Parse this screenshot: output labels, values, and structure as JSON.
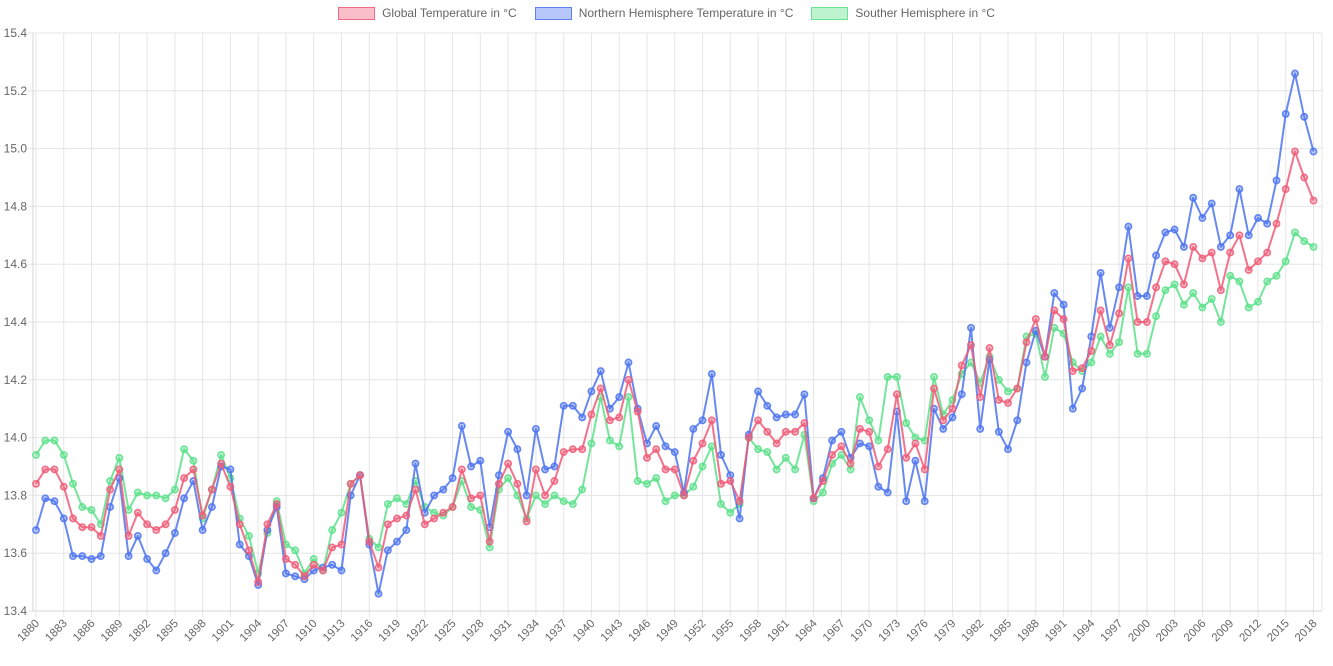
{
  "chart_data": {
    "type": "line",
    "title": "",
    "xlabel": "",
    "ylabel": "",
    "x_start": 1880,
    "x_end": 2018,
    "x_tick_step": 3,
    "x_tick_labels": [
      "1880",
      "1883",
      "1886",
      "1889",
      "1892",
      "1895",
      "1898",
      "1901",
      "1904",
      "1907",
      "1910",
      "1913",
      "1916",
      "1919",
      "1922",
      "1925",
      "1928",
      "1931",
      "1934",
      "1937",
      "1940",
      "1943",
      "1946",
      "1949",
      "1952",
      "1955",
      "1958",
      "1961",
      "1964",
      "1967",
      "1970",
      "1973",
      "1976",
      "1979",
      "1982",
      "1985",
      "1988",
      "1991",
      "1994",
      "1997",
      "2000",
      "2003",
      "2006",
      "2009",
      "2012",
      "2015",
      "2018"
    ],
    "ylim": [
      13.4,
      15.4
    ],
    "y_tick_labels": [
      "13.4",
      "13.6",
      "13.8",
      "14.0",
      "14.2",
      "14.4",
      "14.6",
      "14.8",
      "15.0",
      "15.2",
      "15.4"
    ],
    "grid": true,
    "legend_position": "top",
    "series": [
      {
        "name": "Global Temperature in °C",
        "color": "#F05C78",
        "line_alpha": 0.85,
        "point_fill_alpha": 0.35,
        "values": [
          13.84,
          13.89,
          13.89,
          13.83,
          13.72,
          13.69,
          13.69,
          13.66,
          13.82,
          13.89,
          13.66,
          13.74,
          13.7,
          13.68,
          13.7,
          13.75,
          13.86,
          13.89,
          13.73,
          13.82,
          13.91,
          13.83,
          13.7,
          13.61,
          13.5,
          13.7,
          13.77,
          13.58,
          13.56,
          13.52,
          13.56,
          13.54,
          13.62,
          13.63,
          13.84,
          13.87,
          13.64,
          13.55,
          13.7,
          13.72,
          13.73,
          13.82,
          13.7,
          13.72,
          13.74,
          13.76,
          13.89,
          13.79,
          13.8,
          13.64,
          13.84,
          13.91,
          13.84,
          13.71,
          13.89,
          13.8,
          13.85,
          13.95,
          13.96,
          13.96,
          14.08,
          14.17,
          14.06,
          14.07,
          14.2,
          14.09,
          13.93,
          13.96,
          13.89,
          13.89,
          13.8,
          13.92,
          13.98,
          14.06,
          13.84,
          13.85,
          13.78,
          14.0,
          14.06,
          14.02,
          13.98,
          14.02,
          14.02,
          14.05,
          13.79,
          13.85,
          13.94,
          13.97,
          13.91,
          14.03,
          14.02,
          13.9,
          13.96,
          14.15,
          13.93,
          13.98,
          13.89,
          14.17,
          14.06,
          14.1,
          14.25,
          14.32,
          14.14,
          14.31,
          14.13,
          14.12,
          14.17,
          14.33,
          14.41,
          14.28,
          14.44,
          14.41,
          14.23,
          14.24,
          14.3,
          14.44,
          14.32,
          14.43,
          14.62,
          14.4,
          14.4,
          14.52,
          14.61,
          14.6,
          14.53,
          14.66,
          14.62,
          14.64,
          14.51,
          14.64,
          14.7,
          14.58,
          14.61,
          14.64,
          14.74,
          14.86,
          14.99,
          14.9,
          14.82
        ]
      },
      {
        "name": "Northern Hemisphere Temperature in °C",
        "color": "#4E74F0",
        "line_alpha": 0.85,
        "point_fill_alpha": 0.35,
        "values": [
          13.68,
          13.79,
          13.78,
          13.72,
          13.59,
          13.59,
          13.58,
          13.59,
          13.76,
          13.86,
          13.59,
          13.66,
          13.58,
          13.54,
          13.6,
          13.67,
          13.79,
          13.85,
          13.68,
          13.76,
          13.9,
          13.89,
          13.63,
          13.59,
          13.49,
          13.68,
          13.76,
          13.53,
          13.52,
          13.51,
          13.54,
          13.55,
          13.56,
          13.54,
          13.8,
          13.87,
          13.63,
          13.46,
          13.61,
          13.64,
          13.68,
          13.91,
          13.74,
          13.8,
          13.82,
          13.86,
          14.04,
          13.9,
          13.92,
          13.69,
          13.87,
          14.02,
          13.96,
          13.8,
          14.03,
          13.89,
          13.9,
          14.11,
          14.11,
          14.07,
          14.16,
          14.23,
          14.1,
          14.14,
          14.26,
          14.1,
          13.98,
          14.04,
          13.97,
          13.95,
          13.81,
          14.03,
          14.06,
          14.22,
          13.94,
          13.87,
          13.72,
          14.01,
          14.16,
          14.11,
          14.07,
          14.08,
          14.08,
          14.15,
          13.79,
          13.86,
          13.99,
          14.02,
          13.93,
          13.98,
          13.97,
          13.83,
          13.81,
          14.09,
          13.78,
          13.92,
          13.78,
          14.1,
          14.03,
          14.07,
          14.15,
          14.38,
          14.03,
          14.27,
          14.02,
          13.96,
          14.06,
          14.26,
          14.37,
          14.28,
          14.5,
          14.46,
          14.1,
          14.17,
          14.35,
          14.57,
          14.38,
          14.52,
          14.73,
          14.49,
          14.49,
          14.63,
          14.71,
          14.72,
          14.66,
          14.83,
          14.76,
          14.81,
          14.66,
          14.7,
          14.86,
          14.7,
          14.76,
          14.74,
          14.89,
          15.12,
          15.26,
          15.11,
          14.99
        ]
      },
      {
        "name": "Souther Hemisphere in °C",
        "color": "#5CE08A",
        "line_alpha": 0.85,
        "point_fill_alpha": 0.35,
        "values": [
          13.94,
          13.99,
          13.99,
          13.94,
          13.84,
          13.76,
          13.75,
          13.7,
          13.85,
          13.93,
          13.75,
          13.81,
          13.8,
          13.8,
          13.79,
          13.82,
          13.96,
          13.92,
          13.72,
          13.82,
          13.94,
          13.86,
          13.72,
          13.66,
          13.53,
          13.67,
          13.78,
          13.63,
          13.61,
          13.53,
          13.58,
          13.54,
          13.68,
          13.74,
          13.84,
          13.87,
          13.65,
          13.62,
          13.77,
          13.79,
          13.77,
          13.85,
          13.76,
          13.74,
          13.73,
          13.76,
          13.85,
          13.76,
          13.75,
          13.62,
          13.82,
          13.86,
          13.8,
          13.72,
          13.8,
          13.77,
          13.8,
          13.78,
          13.77,
          13.82,
          13.98,
          14.14,
          13.99,
          13.97,
          14.14,
          13.85,
          13.84,
          13.86,
          13.78,
          13.8,
          13.8,
          13.83,
          13.9,
          13.97,
          13.77,
          13.74,
          13.77,
          14.0,
          13.96,
          13.95,
          13.89,
          13.93,
          13.89,
          14.01,
          13.78,
          13.81,
          13.91,
          13.94,
          13.89,
          14.14,
          14.06,
          13.99,
          14.21,
          14.21,
          14.05,
          14.0,
          13.99,
          14.21,
          14.08,
          14.13,
          14.22,
          14.26,
          14.19,
          14.28,
          14.2,
          14.16,
          14.17,
          14.35,
          14.36,
          14.21,
          14.38,
          14.36,
          14.26,
          14.23,
          14.26,
          14.35,
          14.29,
          14.33,
          14.52,
          14.29,
          14.29,
          14.42,
          14.51,
          14.53,
          14.46,
          14.5,
          14.45,
          14.48,
          14.4,
          14.56,
          14.54,
          14.45,
          14.47,
          14.54,
          14.56,
          14.61,
          14.71,
          14.68,
          14.66
        ]
      }
    ],
    "style": {
      "grid_color": "#e5e5e5",
      "axis_border_color": "#d6d6d6",
      "tick_label_color": "#666666",
      "legend_label_color": "#666666",
      "background": "#ffffff"
    }
  }
}
